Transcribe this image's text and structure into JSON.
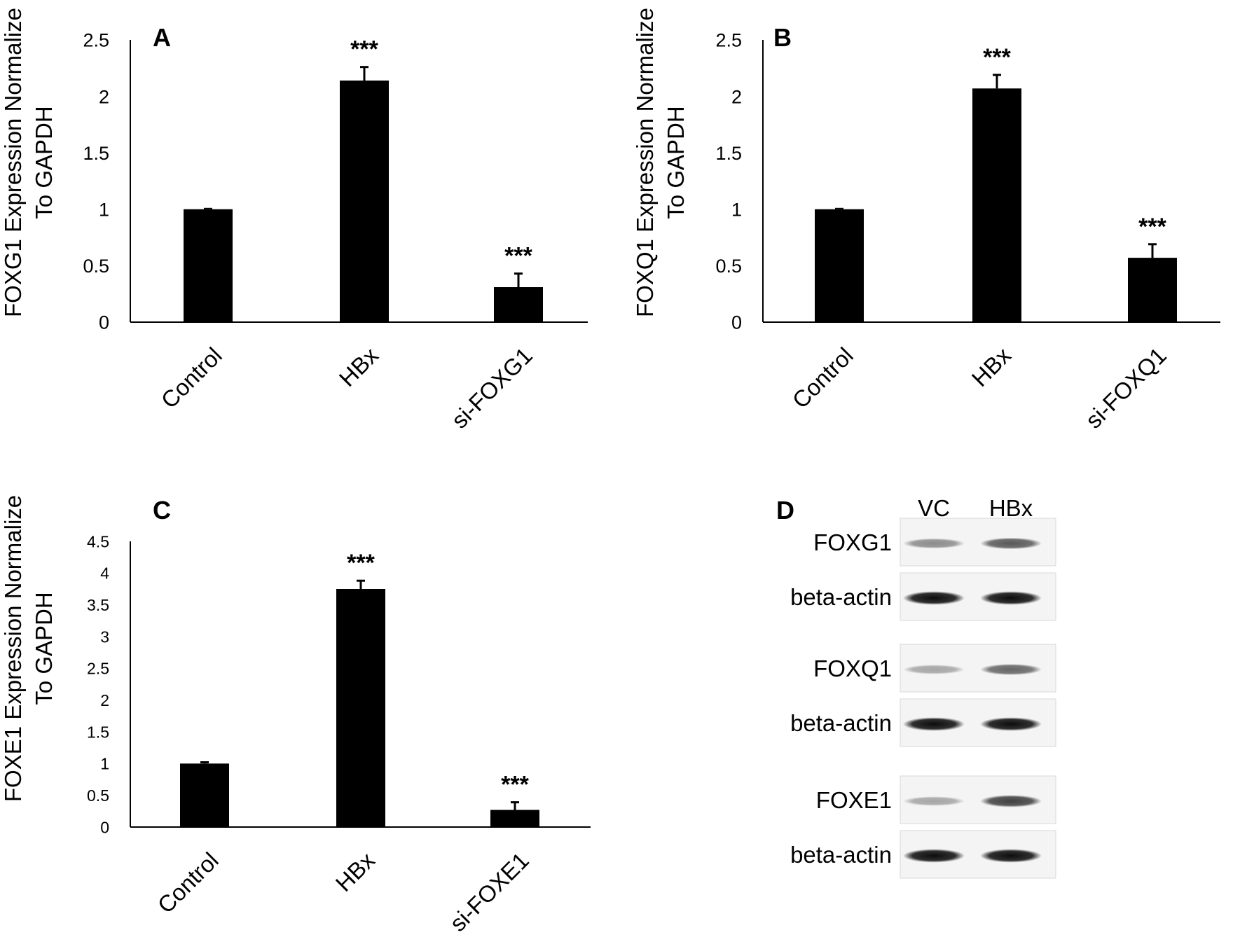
{
  "chart_data": [
    {
      "panel": "A",
      "type": "bar",
      "title": "",
      "ylabel_line1": "FOXG1 Expression Normalize",
      "ylabel_line2": "To GAPDH",
      "xlabel": "",
      "categories": [
        "Control",
        "HBx",
        "si-FOXG1"
      ],
      "values": [
        1.0,
        2.14,
        0.31
      ],
      "errors": [
        0.0,
        0.12,
        0.12
      ],
      "significance": [
        "",
        "***",
        "***"
      ],
      "ylim": [
        0,
        2.5
      ],
      "yticks": [
        0,
        0.5,
        1,
        1.5,
        2,
        2.5
      ],
      "ytick_labels": [
        "0",
        "0.5",
        "1",
        "1.5",
        "2",
        "2.5"
      ],
      "bar_color": "#000000",
      "grid": false
    },
    {
      "panel": "B",
      "type": "bar",
      "title": "",
      "ylabel_line1": "FOXQ1 Expression Normalize",
      "ylabel_line2": "To GAPDH",
      "xlabel": "",
      "categories": [
        "Control",
        "HBx",
        "si-FOXQ1"
      ],
      "values": [
        1.0,
        2.07,
        0.57
      ],
      "errors": [
        0.0,
        0.12,
        0.12
      ],
      "significance": [
        "",
        "***",
        "***"
      ],
      "ylim": [
        0,
        2.5
      ],
      "yticks": [
        0,
        0.5,
        1,
        1.5,
        2,
        2.5
      ],
      "ytick_labels": [
        "0",
        "0.5",
        "1",
        "1.5",
        "2",
        "2.5"
      ],
      "bar_color": "#000000",
      "grid": false
    },
    {
      "panel": "C",
      "type": "bar",
      "title": "",
      "ylabel_line1": "FOXE1 Expression Normalize",
      "ylabel_line2": "To GAPDH",
      "xlabel": "",
      "categories": [
        "Control",
        "HBx",
        "si-FOXE1"
      ],
      "values": [
        1.0,
        3.75,
        0.27
      ],
      "errors": [
        0.02,
        0.13,
        0.12
      ],
      "significance": [
        "",
        "***",
        "***"
      ],
      "ylim": [
        0,
        4.5
      ],
      "yticks": [
        0,
        0.5,
        1,
        1.5,
        2,
        2.5,
        3,
        3.5,
        4,
        4.5
      ],
      "ytick_labels": [
        "0",
        "0.5",
        "1",
        "1.5",
        "2",
        "2.5",
        "3",
        "3.5",
        "4",
        "4.5"
      ],
      "bar_color": "#000000",
      "grid": false
    }
  ],
  "blot": {
    "panel": "D",
    "lanes": [
      "VC",
      "HBx"
    ],
    "rows": [
      {
        "label": "FOXG1",
        "intensity": [
          0.45,
          0.65
        ]
      },
      {
        "label": "beta-actin",
        "intensity": [
          0.95,
          0.95
        ]
      },
      {
        "label": "FOXQ1",
        "intensity": [
          0.35,
          0.6
        ]
      },
      {
        "label": "beta-actin",
        "intensity": [
          0.95,
          0.95
        ]
      },
      {
        "label": "FOXE1",
        "intensity": [
          0.35,
          0.75
        ]
      },
      {
        "label": "beta-actin",
        "intensity": [
          0.95,
          0.95
        ]
      }
    ]
  }
}
